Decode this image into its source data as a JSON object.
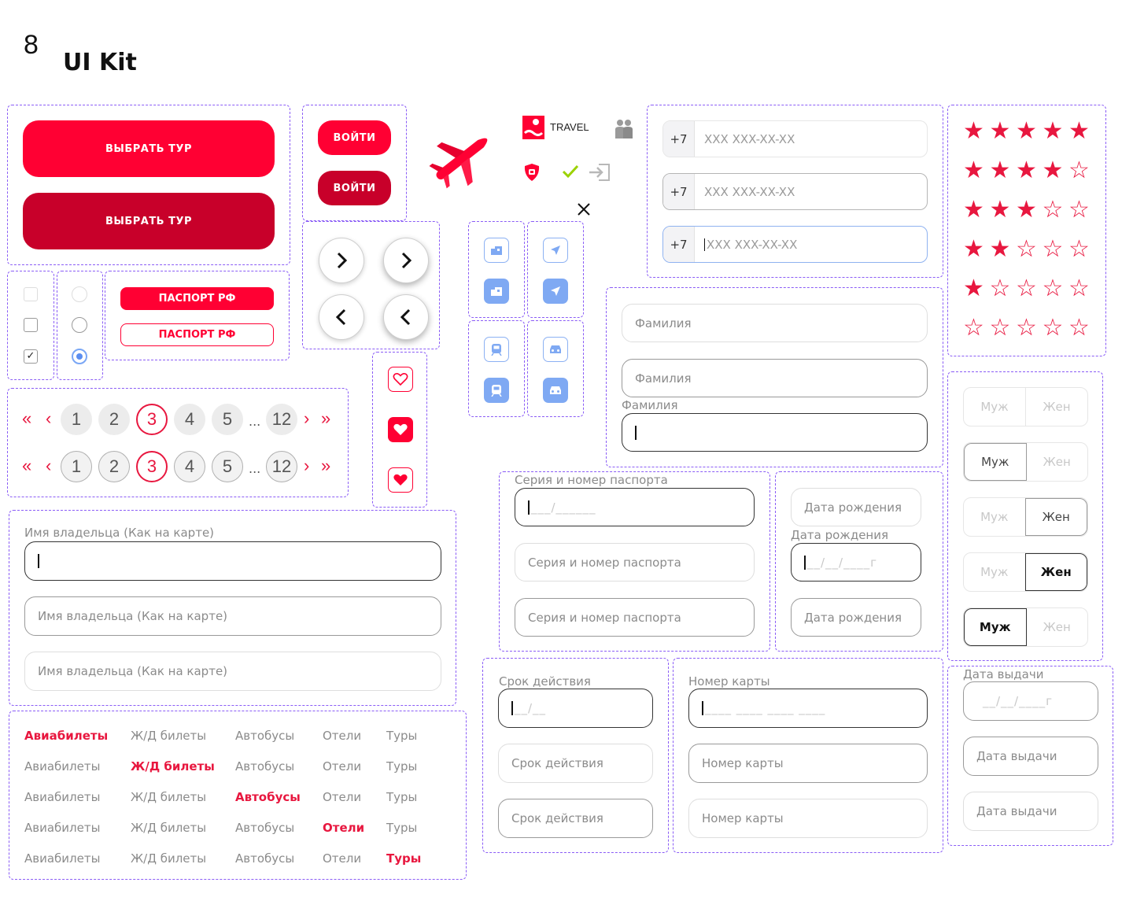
{
  "page": {
    "number": "8",
    "title": "UI Kit"
  },
  "buttons": {
    "tour_primary": "ВЫБРАТЬ ТУР",
    "tour_dark": "ВЫБРАТЬ ТУР",
    "login_primary": "ВОЙТИ",
    "login_dark": "ВОЙТИ"
  },
  "passport": {
    "filled": "ПАСПОРТ РФ",
    "outline": "ПАСПОРТ РФ"
  },
  "logo": {
    "text": "TRAVEL"
  },
  "colors": {
    "accent": "#ff0033",
    "accent_dark": "#c8002a",
    "blue": "#7fa9f3",
    "purple_guide": "#8a5cf6"
  },
  "phone": {
    "prefix": "+7",
    "placeholder": "XXX XXX-XX-XX"
  },
  "ratings": [
    {
      "value": 5,
      "stars": "★★★★★"
    },
    {
      "value": 4,
      "stars": "★★★★☆"
    },
    {
      "value": 3,
      "stars": "★★★☆☆"
    },
    {
      "value": 2,
      "stars": "★★☆☆☆"
    },
    {
      "value": 1,
      "stars": "★☆☆☆☆"
    },
    {
      "value": 0,
      "stars": "☆☆☆☆☆"
    }
  ],
  "surname": {
    "placeholder": "Фамилия",
    "label": "Фамилия"
  },
  "gender": {
    "male": "Муж",
    "female": "Жен"
  },
  "pagination": {
    "pages": [
      "1",
      "2",
      "3",
      "4",
      "5",
      "12"
    ],
    "ellipsis": "...",
    "current": "3"
  },
  "passport_series": {
    "label": "Серия и номер паспорта",
    "mask": "___/______",
    "placeholder": "Серия и номер паспорта"
  },
  "birth_date": {
    "placeholder": "Дата рождения",
    "label": "Дата рождения",
    "mask": "__/__/____г"
  },
  "card_holder": {
    "label": "Имя владельца (Как на карте)",
    "placeholder": "Имя владельца (Как на карте)"
  },
  "expiry": {
    "label": "Срок действия",
    "mask": "__/__",
    "placeholder": "Срок действия"
  },
  "card_number": {
    "label": "Номер карты",
    "mask": "____ ____ ____ ____",
    "placeholder": "Номер карты"
  },
  "issue_date": {
    "label": "Дата выдачи",
    "mask": "__/__/____г",
    "placeholder": "Дата выдачи"
  },
  "tabs": [
    "Авиабилеты",
    "Ж/Д билеты",
    "Автобусы",
    "Отели",
    "Туры"
  ],
  "icons": [
    "plane-icon",
    "people-icon",
    "shield-icon",
    "checkmark-icon",
    "login-icon",
    "close-icon",
    "hotel-icon",
    "flight-icon",
    "train-icon",
    "car-icon",
    "heart-icon",
    "chevron-right-icon",
    "chevron-left-icon"
  ]
}
